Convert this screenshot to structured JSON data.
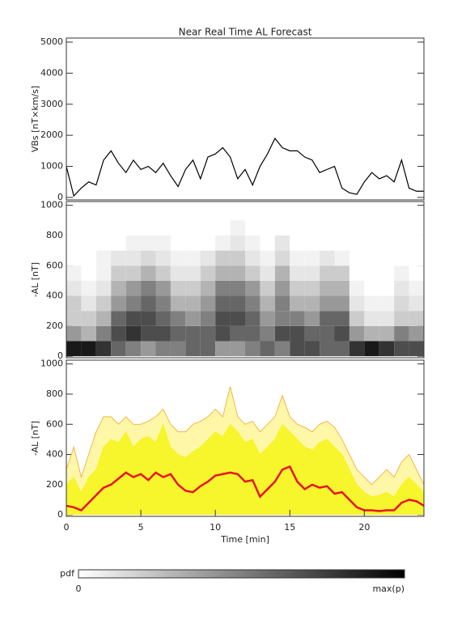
{
  "chart_data": [
    {
      "type": "line",
      "title": "Near Real Time AL Forecast",
      "ylabel": "VBs [nT×km/s]",
      "color": "#000000",
      "x": [
        0,
        0.5,
        1,
        1.5,
        2,
        2.5,
        3,
        3.5,
        4,
        4.5,
        5,
        5.5,
        6,
        6.5,
        7,
        7.5,
        8,
        8.5,
        9,
        9.5,
        10,
        10.5,
        11,
        11.5,
        12,
        12.5,
        13,
        13.5,
        14,
        14.5,
        15,
        15.5,
        16,
        16.5,
        17,
        17.5,
        18,
        18.5,
        19,
        19.5,
        20,
        20.5,
        21,
        21.5,
        22,
        22.5,
        23,
        23.5,
        24
      ],
      "values": [
        1000,
        50,
        300,
        500,
        400,
        1200,
        1500,
        1100,
        800,
        1200,
        900,
        1000,
        800,
        1100,
        700,
        350,
        900,
        1200,
        600,
        1300,
        1400,
        1600,
        1300,
        600,
        900,
        400,
        1000,
        1400,
        1900,
        1600,
        1500,
        1500,
        1300,
        1200,
        800,
        900,
        1000,
        300,
        150,
        100,
        500,
        800,
        600,
        700,
        500,
        1200,
        300,
        200,
        200
      ],
      "xlim": [
        0,
        24
      ],
      "ylim": [
        -80,
        5130
      ],
      "yticks": [
        0,
        1000,
        2000,
        3000,
        4000,
        5000
      ]
    },
    {
      "type": "heatmap",
      "ylabel": "-AL [nT]",
      "xbins": [
        0,
        1,
        2,
        3,
        4,
        5,
        6,
        7,
        8,
        9,
        10,
        11,
        12,
        13,
        14,
        15,
        16,
        17,
        18,
        19,
        20,
        21,
        22,
        23,
        24
      ],
      "ybins": [
        0,
        100,
        200,
        300,
        400,
        500,
        600,
        700,
        800,
        900
      ],
      "z": [
        [
          0.9,
          0.9,
          0.8,
          0.6,
          0.5,
          0.4,
          0.5,
          0.5,
          0.6,
          0.6,
          0.4,
          0.4,
          0.5,
          0.6,
          0.5,
          0.7,
          0.7,
          0.6,
          0.6,
          0.8,
          0.9,
          0.8,
          0.7,
          0.7
        ],
        [
          0.4,
          0.3,
          0.5,
          0.7,
          0.8,
          0.7,
          0.7,
          0.6,
          0.6,
          0.6,
          0.7,
          0.6,
          0.6,
          0.5,
          0.7,
          0.7,
          0.6,
          0.6,
          0.7,
          0.4,
          0.3,
          0.3,
          0.5,
          0.4
        ],
        [
          0.2,
          0.2,
          0.3,
          0.6,
          0.7,
          0.7,
          0.6,
          0.5,
          0.4,
          0.5,
          0.7,
          0.7,
          0.6,
          0.4,
          0.5,
          0.5,
          0.4,
          0.6,
          0.6,
          0.2,
          0.1,
          0.1,
          0.2,
          0.2
        ],
        [
          0.2,
          0.1,
          0.2,
          0.4,
          0.5,
          0.6,
          0.5,
          0.3,
          0.3,
          0.4,
          0.6,
          0.6,
          0.5,
          0.3,
          0.5,
          0.3,
          0.3,
          0.4,
          0.4,
          0.1,
          0.05,
          0.05,
          0.15,
          0.1
        ],
        [
          0.1,
          0.05,
          0.1,
          0.3,
          0.4,
          0.5,
          0.4,
          0.2,
          0.2,
          0.3,
          0.5,
          0.5,
          0.4,
          0.2,
          0.4,
          0.2,
          0.2,
          0.3,
          0.3,
          0.05,
          0,
          0,
          0.1,
          0.05
        ],
        [
          0.05,
          0,
          0.05,
          0.2,
          0.2,
          0.3,
          0.2,
          0.1,
          0.1,
          0.2,
          0.3,
          0.3,
          0.2,
          0.1,
          0.3,
          0.1,
          0.1,
          0.2,
          0.2,
          0,
          0,
          0,
          0.05,
          0
        ],
        [
          0,
          0,
          0.05,
          0.1,
          0.1,
          0.15,
          0.1,
          0.05,
          0.05,
          0.1,
          0.2,
          0.2,
          0.1,
          0.05,
          0.15,
          0.05,
          0.05,
          0.1,
          0.05,
          0,
          0,
          0,
          0,
          0
        ],
        [
          0,
          0,
          0,
          0,
          0.05,
          0.05,
          0.05,
          0,
          0,
          0,
          0.05,
          0.1,
          0.05,
          0,
          0.1,
          0,
          0,
          0,
          0,
          0,
          0,
          0,
          0,
          0
        ],
        [
          0,
          0,
          0,
          0,
          0,
          0,
          0,
          0,
          0,
          0,
          0,
          0.05,
          0,
          0,
          0,
          0,
          0,
          0,
          0,
          0,
          0,
          0,
          0,
          0
        ]
      ],
      "xlim": [
        0,
        24
      ],
      "ylim": [
        -10,
        1025
      ],
      "yticks": [
        0,
        200,
        400,
        600,
        800,
        1000
      ],
      "colorbar": {
        "label": "pdf",
        "min_label": "0",
        "max_label": "max(p)"
      }
    },
    {
      "type": "area",
      "ylabel": "-AL [nT]",
      "xlabel": "Time [min]",
      "x": [
        0,
        0.5,
        1,
        1.5,
        2,
        2.5,
        3,
        3.5,
        4,
        4.5,
        5,
        5.5,
        6,
        6.5,
        7,
        7.5,
        8,
        8.5,
        9,
        9.5,
        10,
        10.5,
        11,
        11.5,
        12,
        12.5,
        13,
        13.5,
        14,
        14.5,
        15,
        15.5,
        16,
        16.5,
        17,
        17.5,
        18,
        18.5,
        19,
        19.5,
        20,
        20.5,
        21,
        21.5,
        22,
        22.5,
        23,
        23.5,
        24
      ],
      "series": [
        {
          "kind": "area",
          "color": "#fff7a8",
          "edge": "#f5a623",
          "values": [
            300,
            450,
            250,
            400,
            550,
            650,
            650,
            600,
            650,
            600,
            600,
            620,
            650,
            700,
            600,
            550,
            550,
            600,
            620,
            650,
            700,
            650,
            850,
            650,
            600,
            620,
            550,
            600,
            650,
            790,
            650,
            600,
            580,
            550,
            600,
            620,
            580,
            500,
            400,
            300,
            250,
            200,
            250,
            300,
            250,
            350,
            400,
            300,
            200
          ]
        },
        {
          "kind": "area",
          "color": "#f7f52c",
          "edge": "#f7f52c",
          "values": [
            200,
            250,
            150,
            250,
            300,
            450,
            500,
            480,
            550,
            450,
            500,
            520,
            480,
            600,
            450,
            400,
            380,
            420,
            450,
            500,
            550,
            520,
            600,
            550,
            480,
            500,
            400,
            450,
            500,
            600,
            550,
            500,
            450,
            430,
            480,
            500,
            450,
            400,
            300,
            200,
            150,
            120,
            130,
            150,
            120,
            200,
            250,
            200,
            150
          ]
        },
        {
          "kind": "line",
          "color": "#e8141e",
          "values": [
            60,
            50,
            30,
            80,
            130,
            180,
            200,
            240,
            280,
            250,
            270,
            230,
            280,
            250,
            270,
            200,
            160,
            150,
            190,
            220,
            260,
            270,
            280,
            270,
            220,
            230,
            120,
            170,
            220,
            300,
            320,
            220,
            170,
            200,
            180,
            190,
            140,
            150,
            100,
            50,
            30,
            30,
            25,
            30,
            30,
            80,
            100,
            90,
            60
          ]
        }
      ],
      "xlim": [
        0,
        24
      ],
      "ylim": [
        -10,
        1025
      ],
      "yticks": [
        0,
        200,
        400,
        600,
        800,
        1000
      ],
      "xticks": [
        0,
        5,
        10,
        15,
        20
      ]
    }
  ]
}
